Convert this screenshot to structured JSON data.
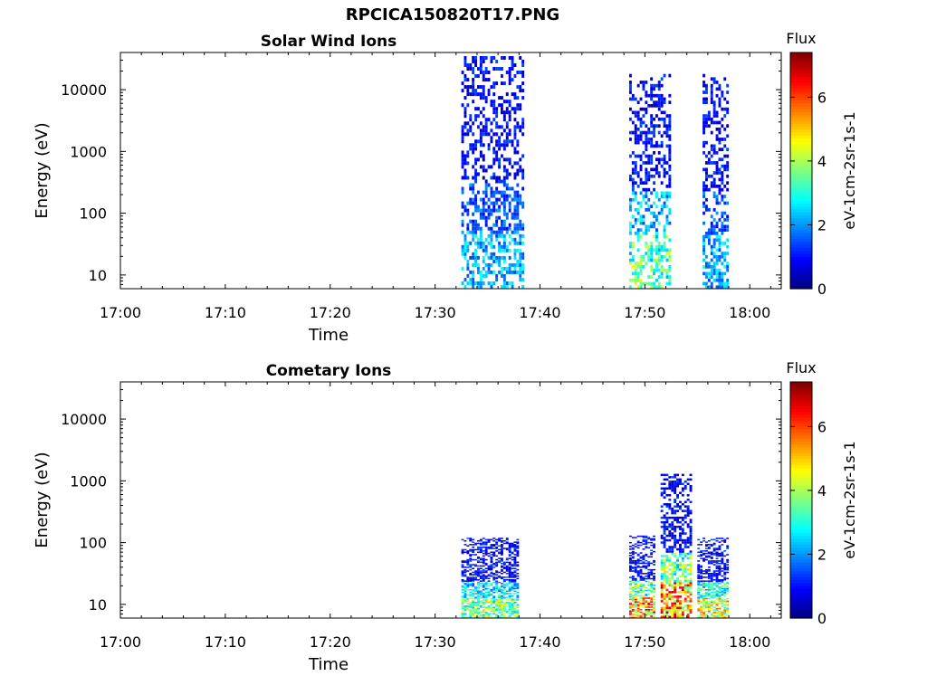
{
  "page_title": "RPCICA150820T17.PNG",
  "chart_data": [
    {
      "type": "heatmap",
      "title": "Solar Wind Ions",
      "xlabel": "Time",
      "ylabel": "Energy (eV)",
      "y_scale": "log",
      "xlim": [
        "17:00",
        "18:03"
      ],
      "ylim": [
        6,
        40000
      ],
      "x_ticks": [
        "17:00",
        "17:10",
        "17:20",
        "17:30",
        "17:40",
        "17:50",
        "18:00"
      ],
      "y_ticks": [
        "10",
        "100",
        "1000",
        "10000"
      ],
      "colorbar": {
        "title": "Flux",
        "label": "eV-1cm-2sr-1s-1",
        "range": [
          0,
          7.4
        ],
        "ticks": [
          "0",
          "2",
          "4",
          "6"
        ]
      },
      "bursts": [
        {
          "start": "17:32.5",
          "end": "17:38.5",
          "emin": 6,
          "emax": 35000,
          "peak_flux": 3
        },
        {
          "start": "17:48.5",
          "end": "17:52.5",
          "emin": 6,
          "emax": 18000,
          "peak_flux": 4.5
        },
        {
          "start": "17:55.5",
          "end": "17:57.8",
          "emin": 6,
          "emax": 18000,
          "peak_flux": 3
        }
      ]
    },
    {
      "type": "heatmap",
      "title": "Cometary Ions",
      "xlabel": "Time",
      "ylabel": "Energy (eV)",
      "y_scale": "log",
      "xlim": [
        "17:00",
        "18:03"
      ],
      "ylim": [
        6,
        40000
      ],
      "x_ticks": [
        "17:00",
        "17:10",
        "17:20",
        "17:30",
        "17:40",
        "17:50",
        "18:00"
      ],
      "y_ticks": [
        "10",
        "100",
        "1000",
        "10000"
      ],
      "colorbar": {
        "title": "Flux",
        "label": "eV-1cm-2sr-1s-1",
        "range": [
          0,
          7.4
        ],
        "ticks": [
          "0",
          "2",
          "4",
          "6"
        ]
      },
      "bursts": [
        {
          "start": "17:32.5",
          "end": "17:38",
          "emin": 6,
          "emax": 120,
          "peak_flux": 5
        },
        {
          "start": "17:48.5",
          "end": "17:51",
          "emin": 6,
          "emax": 130,
          "peak_flux": 7
        },
        {
          "start": "17:51.5",
          "end": "17:54.5",
          "emin": 6,
          "emax": 1300,
          "peak_flux": 7
        },
        {
          "start": "17:55",
          "end": "17:58",
          "emin": 6,
          "emax": 120,
          "peak_flux": 6
        }
      ]
    }
  ]
}
